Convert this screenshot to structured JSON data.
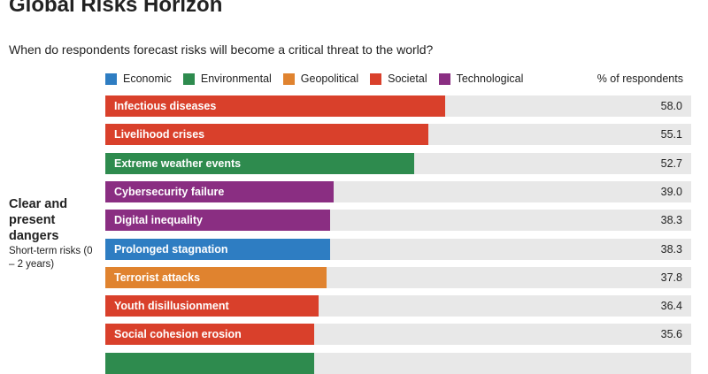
{
  "title": "Global Risks Horizon",
  "subtitle": "When do respondents forecast risks will become a critical threat to the world?",
  "legend": [
    {
      "label": "Economic",
      "color": "#2e7dc2"
    },
    {
      "label": "Environmental",
      "color": "#2e8b4e"
    },
    {
      "label": "Geopolitical",
      "color": "#e0832f"
    },
    {
      "label": "Societal",
      "color": "#d9402b"
    },
    {
      "label": "Technological",
      "color": "#8a2e82"
    }
  ],
  "value_header": "% of respondents",
  "group": {
    "heading": "Clear and present dangers",
    "subheading": "Short-term risks (0 – 2 years)"
  },
  "chart_data": {
    "type": "bar",
    "orientation": "horizontal",
    "xlim": [
      0,
      100
    ],
    "categories": [
      "Infectious diseases",
      "Livelihood crises",
      "Extreme weather events",
      "Cybersecurity failure",
      "Digital inequality",
      "Prolonged stagnation",
      "Terrorist attacks",
      "Youth disillusionment",
      "Social cohesion erosion",
      ""
    ],
    "values": [
      58.0,
      55.1,
      52.7,
      39.0,
      38.3,
      38.3,
      37.8,
      36.4,
      35.6,
      35.6
    ],
    "labels": [
      "58.0",
      "55.1",
      "52.7",
      "39.0",
      "38.3",
      "38.3",
      "37.8",
      "36.4",
      "35.6",
      ""
    ],
    "category_type": [
      "Societal",
      "Societal",
      "Environmental",
      "Technological",
      "Technological",
      "Economic",
      "Geopolitical",
      "Societal",
      "Societal",
      "Environmental"
    ]
  }
}
